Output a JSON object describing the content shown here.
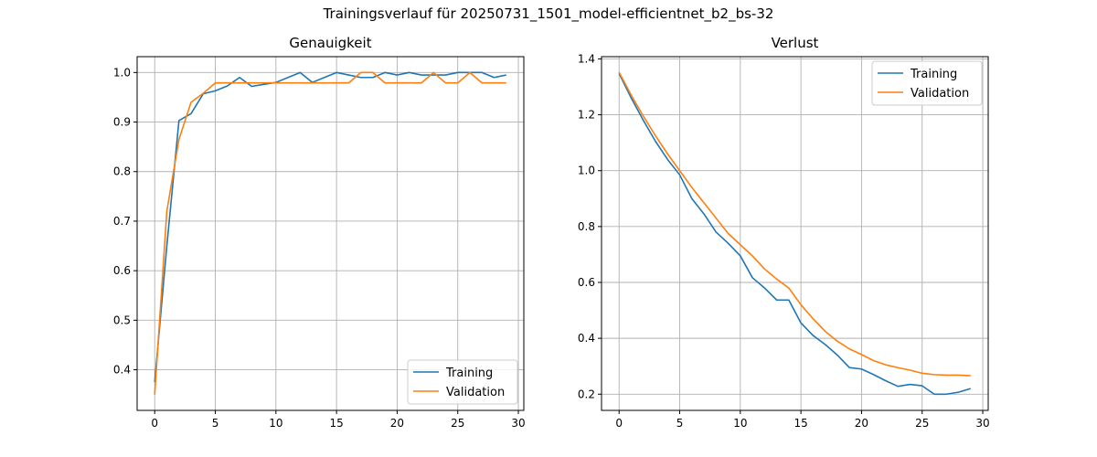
{
  "figure": {
    "title": "Trainingsverlauf für 20250731_1501_model-efficientnet_b2_bs-32"
  },
  "chart_data": [
    {
      "type": "line",
      "title": "Genauigkeit",
      "xlabel": "",
      "ylabel": "",
      "xlim": [
        -1.45,
        30.45
      ],
      "ylim": [
        0.318,
        1.032
      ],
      "xticks": [
        0,
        5,
        10,
        15,
        20,
        25,
        30
      ],
      "yticks": [
        0.4,
        0.5,
        0.6,
        0.7,
        0.8,
        0.9,
        1.0
      ],
      "ytick_labels": [
        "0.4",
        "0.5",
        "0.6",
        "0.7",
        "0.8",
        "0.9",
        "1.0"
      ],
      "grid": true,
      "legend_position": "lower-right",
      "x": [
        0,
        1,
        2,
        3,
        4,
        5,
        6,
        7,
        8,
        9,
        10,
        11,
        12,
        13,
        14,
        15,
        16,
        17,
        18,
        19,
        20,
        21,
        22,
        23,
        24,
        25,
        26,
        27,
        28,
        29
      ],
      "series": [
        {
          "name": "Training",
          "color": "#1f77b4",
          "values": [
            0.375,
            0.65,
            0.903,
            0.917,
            0.957,
            0.963,
            0.973,
            0.99,
            0.972,
            0.976,
            0.98,
            0.99,
            1.0,
            0.98,
            0.99,
            1.0,
            0.995,
            0.99,
            0.99,
            1.0,
            0.995,
            1.0,
            0.995,
            0.995,
            0.995,
            1.0,
            1.0,
            1.0,
            0.99,
            0.995
          ]
        },
        {
          "name": "Validation",
          "color": "#ff7f0e",
          "values": [
            0.35,
            0.72,
            0.865,
            0.94,
            0.958,
            0.979,
            0.979,
            0.979,
            0.979,
            0.979,
            0.979,
            0.979,
            0.979,
            0.979,
            0.979,
            0.979,
            0.979,
            1.0,
            1.0,
            0.979,
            0.979,
            0.979,
            0.979,
            1.0,
            0.979,
            0.979,
            1.0,
            0.979,
            0.979,
            0.979
          ]
        }
      ]
    },
    {
      "type": "line",
      "title": "Verlust",
      "xlabel": "",
      "ylabel": "",
      "xlim": [
        -1.45,
        30.45
      ],
      "ylim": [
        0.142,
        1.408
      ],
      "xticks": [
        0,
        5,
        10,
        15,
        20,
        25,
        30
      ],
      "yticks": [
        0.2,
        0.4,
        0.6,
        0.8,
        1.0,
        1.2,
        1.4
      ],
      "ytick_labels": [
        "0.2",
        "0.4",
        "0.6",
        "0.8",
        "1.0",
        "1.2",
        "1.4"
      ],
      "grid": true,
      "legend_position": "upper-right",
      "x": [
        0,
        1,
        2,
        3,
        4,
        5,
        6,
        7,
        8,
        9,
        10,
        11,
        12,
        13,
        14,
        15,
        16,
        17,
        18,
        19,
        20,
        21,
        22,
        23,
        24,
        25,
        26,
        27,
        28,
        29
      ],
      "series": [
        {
          "name": "Training",
          "color": "#1f77b4",
          "values": [
            1.348,
            1.26,
            1.18,
            1.105,
            1.04,
            0.985,
            0.9,
            0.845,
            0.78,
            0.74,
            0.695,
            0.617,
            0.58,
            0.537,
            0.537,
            0.455,
            0.41,
            0.378,
            0.34,
            0.295,
            0.29,
            0.27,
            0.248,
            0.228,
            0.235,
            0.23,
            0.2,
            0.2,
            0.207,
            0.22
          ]
        },
        {
          "name": "Validation",
          "color": "#ff7f0e",
          "values": [
            1.352,
            1.27,
            1.195,
            1.125,
            1.06,
            1.0,
            0.94,
            0.885,
            0.83,
            0.775,
            0.735,
            0.695,
            0.648,
            0.612,
            0.58,
            0.52,
            0.47,
            0.425,
            0.39,
            0.362,
            0.342,
            0.32,
            0.305,
            0.295,
            0.286,
            0.275,
            0.27,
            0.268,
            0.268,
            0.266
          ]
        }
      ]
    }
  ]
}
